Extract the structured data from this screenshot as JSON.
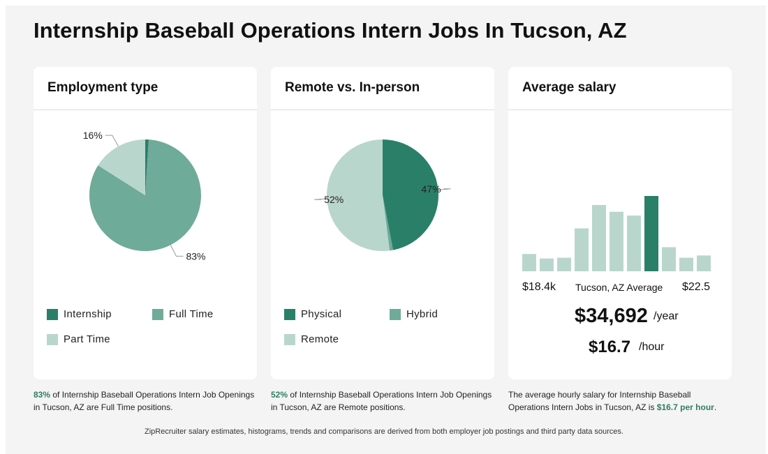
{
  "page": {
    "title": "Internship Baseball Operations Intern Jobs In Tucson, AZ",
    "footer": "ZipRecruiter salary estimates, histograms, trends and comparisons are derived from both employer job postings and third party data sources."
  },
  "colors": {
    "dark": "#2a7f68",
    "mid": "#6eab99",
    "light": "#b9d6cd",
    "highlight": "#2e7d64"
  },
  "employment": {
    "title": "Employment type",
    "slice_labels": [
      "16%",
      "83%"
    ],
    "legend": [
      "Internship",
      "Full Time",
      "Part Time"
    ],
    "caption": {
      "pct": "83%",
      "text": " of Internship Baseball Operations Intern Job Openings in Tucson, AZ are Full Time positions."
    }
  },
  "remote": {
    "title": "Remote vs. In-person",
    "slice_labels": [
      "47%",
      "52%"
    ],
    "legend": [
      "Physical",
      "Hybrid",
      "Remote"
    ],
    "caption": {
      "pct": "52%",
      "text": " of Internship Baseball Operations Intern Job Openings in Tucson, AZ are Remote positions."
    }
  },
  "salary": {
    "title": "Average salary",
    "min_label": "$18.4k",
    "avg_label": "Tucson, AZ Average",
    "max_label": "$22.5",
    "yearly": "$34,692",
    "yearly_unit": "/year",
    "hourly": "$16.7",
    "hourly_unit": "/hour",
    "caption": {
      "text": "The average hourly salary for Internship Baseball Operations Intern Jobs in Tucson, AZ is ",
      "highlight": "$16.7 per hour",
      "end": "."
    }
  },
  "chart_data": [
    {
      "type": "pie",
      "title": "Employment type",
      "categories": [
        "Internship",
        "Full Time",
        "Part Time"
      ],
      "values": [
        1,
        83,
        16
      ]
    },
    {
      "type": "pie",
      "title": "Remote vs. In-person",
      "categories": [
        "Physical",
        "Hybrid",
        "Remote"
      ],
      "values": [
        47,
        1,
        52
      ]
    },
    {
      "type": "bar",
      "title": "Average salary",
      "values": [
        23,
        17,
        18,
        57,
        88,
        79,
        74,
        100,
        32,
        18,
        21
      ],
      "highlight_index": 7,
      "units": "relative frequency"
    }
  ]
}
